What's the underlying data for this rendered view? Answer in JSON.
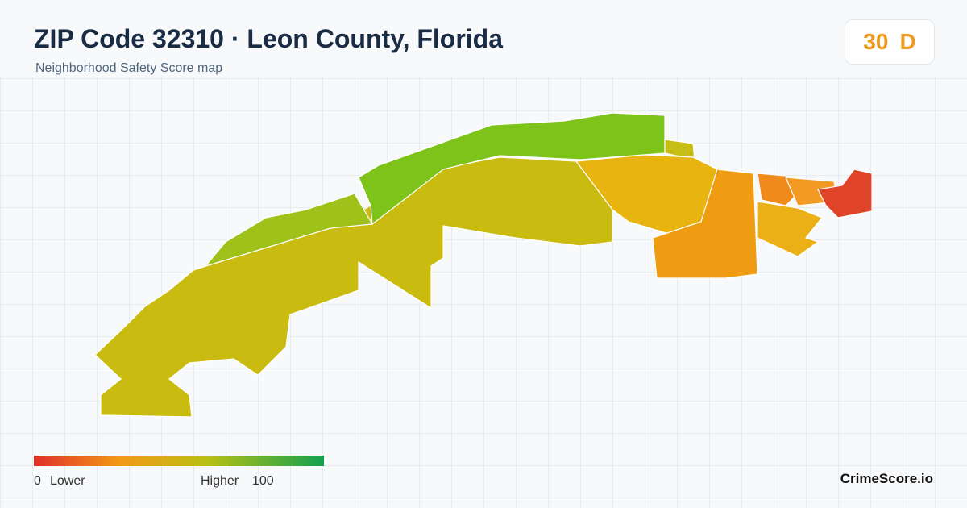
{
  "header": {
    "title": "ZIP Code 32310 · Leon County, Florida",
    "subtitle": "Neighborhood Safety Score map"
  },
  "score": {
    "value": 30,
    "grade": "D"
  },
  "legend": {
    "min": 0,
    "min_label": "Lower",
    "max_label": "Higher",
    "max": 100
  },
  "brand": "CrimeScore.io"
}
